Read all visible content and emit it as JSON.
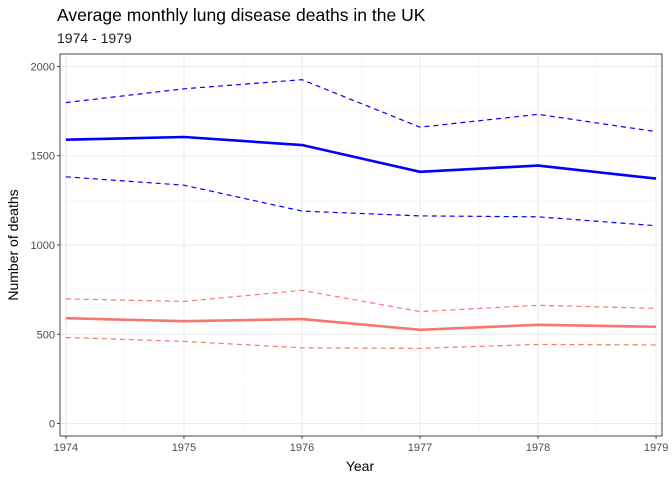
{
  "chart_data": {
    "type": "line",
    "title": "Average monthly lung disease deaths in the UK",
    "subtitle": "1974 - 1979",
    "xlabel": "Year",
    "ylabel": "Number of deaths",
    "x": [
      1974,
      1975,
      1976,
      1977,
      1978,
      1979
    ],
    "xlim": [
      1973.95,
      1979.05
    ],
    "ylim": [
      -70,
      2070
    ],
    "yticks": [
      0,
      500,
      1000,
      1500,
      2000
    ],
    "grid": true,
    "legend": "none",
    "series": [
      {
        "color": "#0000ff",
        "style": "solid",
        "values": [
          1590,
          1605,
          1560,
          1410,
          1445,
          1372
        ]
      },
      {
        "color": "#0000ff",
        "style": "dashed",
        "values": [
          1798,
          1875,
          1926,
          1660,
          1732,
          1635
        ]
      },
      {
        "color": "#0000ff",
        "style": "dashed",
        "values": [
          1382,
          1335,
          1190,
          1163,
          1158,
          1108
        ]
      },
      {
        "color": "#f8766d",
        "style": "solid",
        "values": [
          590,
          573,
          585,
          525,
          553,
          542
        ]
      },
      {
        "color": "#f8766d",
        "style": "dashed",
        "values": [
          698,
          684,
          746,
          627,
          662,
          645
        ]
      },
      {
        "color": "#f8766d",
        "style": "dashed",
        "values": [
          482,
          460,
          424,
          421,
          443,
          440
        ]
      }
    ]
  }
}
